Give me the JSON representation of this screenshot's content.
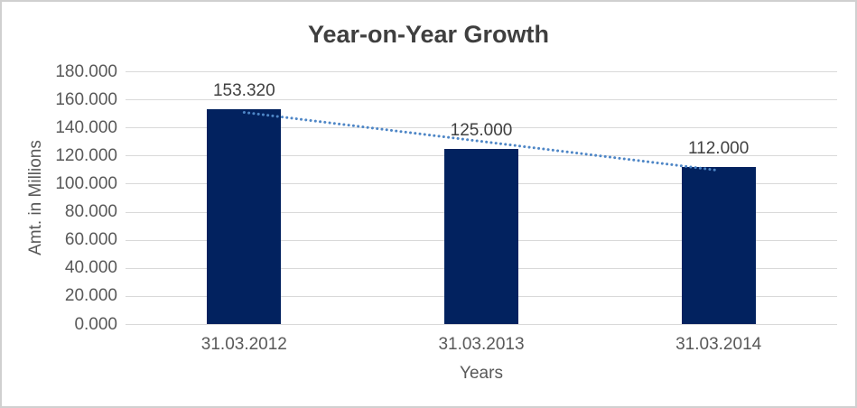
{
  "chart_data": {
    "type": "bar",
    "title": "Year-on-Year Growth",
    "xlabel": "Years",
    "ylabel": "Amt. in Millions",
    "categories": [
      "31.03.2012",
      "31.03.2013",
      "31.03.2014"
    ],
    "values": [
      153.32,
      125.0,
      112.0
    ],
    "value_labels": [
      "153.320",
      "125.000",
      "112.000"
    ],
    "ylim": [
      0,
      180
    ],
    "y_tick_step": 20,
    "y_tick_labels": [
      "0.000",
      "20.000",
      "40.000",
      "60.000",
      "80.000",
      "100.000",
      "120.000",
      "140.000",
      "160.000",
      "180.000"
    ],
    "grid": true,
    "legend": "none",
    "trendline": {
      "kind": "linear",
      "style": "dotted",
      "color": "#4e86c6"
    },
    "colors": {
      "bar": "#02225f",
      "gridline": "#d9d9d9",
      "title_text": "#3f3f3f",
      "axis_text": "#595959",
      "label_text": "#404040",
      "frame_border": "#d0d0d0",
      "background": "#ffffff"
    }
  }
}
